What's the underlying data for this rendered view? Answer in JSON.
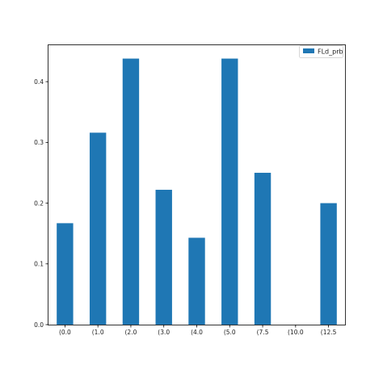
{
  "chart_data": {
    "type": "bar",
    "title": "",
    "xlabel": "",
    "ylabel": "",
    "categories": [
      "(0.0",
      "(1.0",
      "(2.0",
      "(3.0",
      "(4.0",
      "(5.0",
      "(7.5",
      "(10.0",
      "(12.5"
    ],
    "series": [
      {
        "name": "FLd_prb",
        "values": [
          0.167,
          0.316,
          0.438,
          0.222,
          0.143,
          0.438,
          0.25,
          0.0,
          0.2
        ],
        "color": "#1f77b4"
      }
    ],
    "ylim": [
      0,
      0.46
    ],
    "yticks": [
      0.0,
      0.1,
      0.2,
      0.3,
      0.4
    ],
    "ytick_labels": [
      "0.0",
      "0.1",
      "0.2",
      "0.3",
      "0.4"
    ],
    "grid": false,
    "legend_position": "top-right"
  }
}
